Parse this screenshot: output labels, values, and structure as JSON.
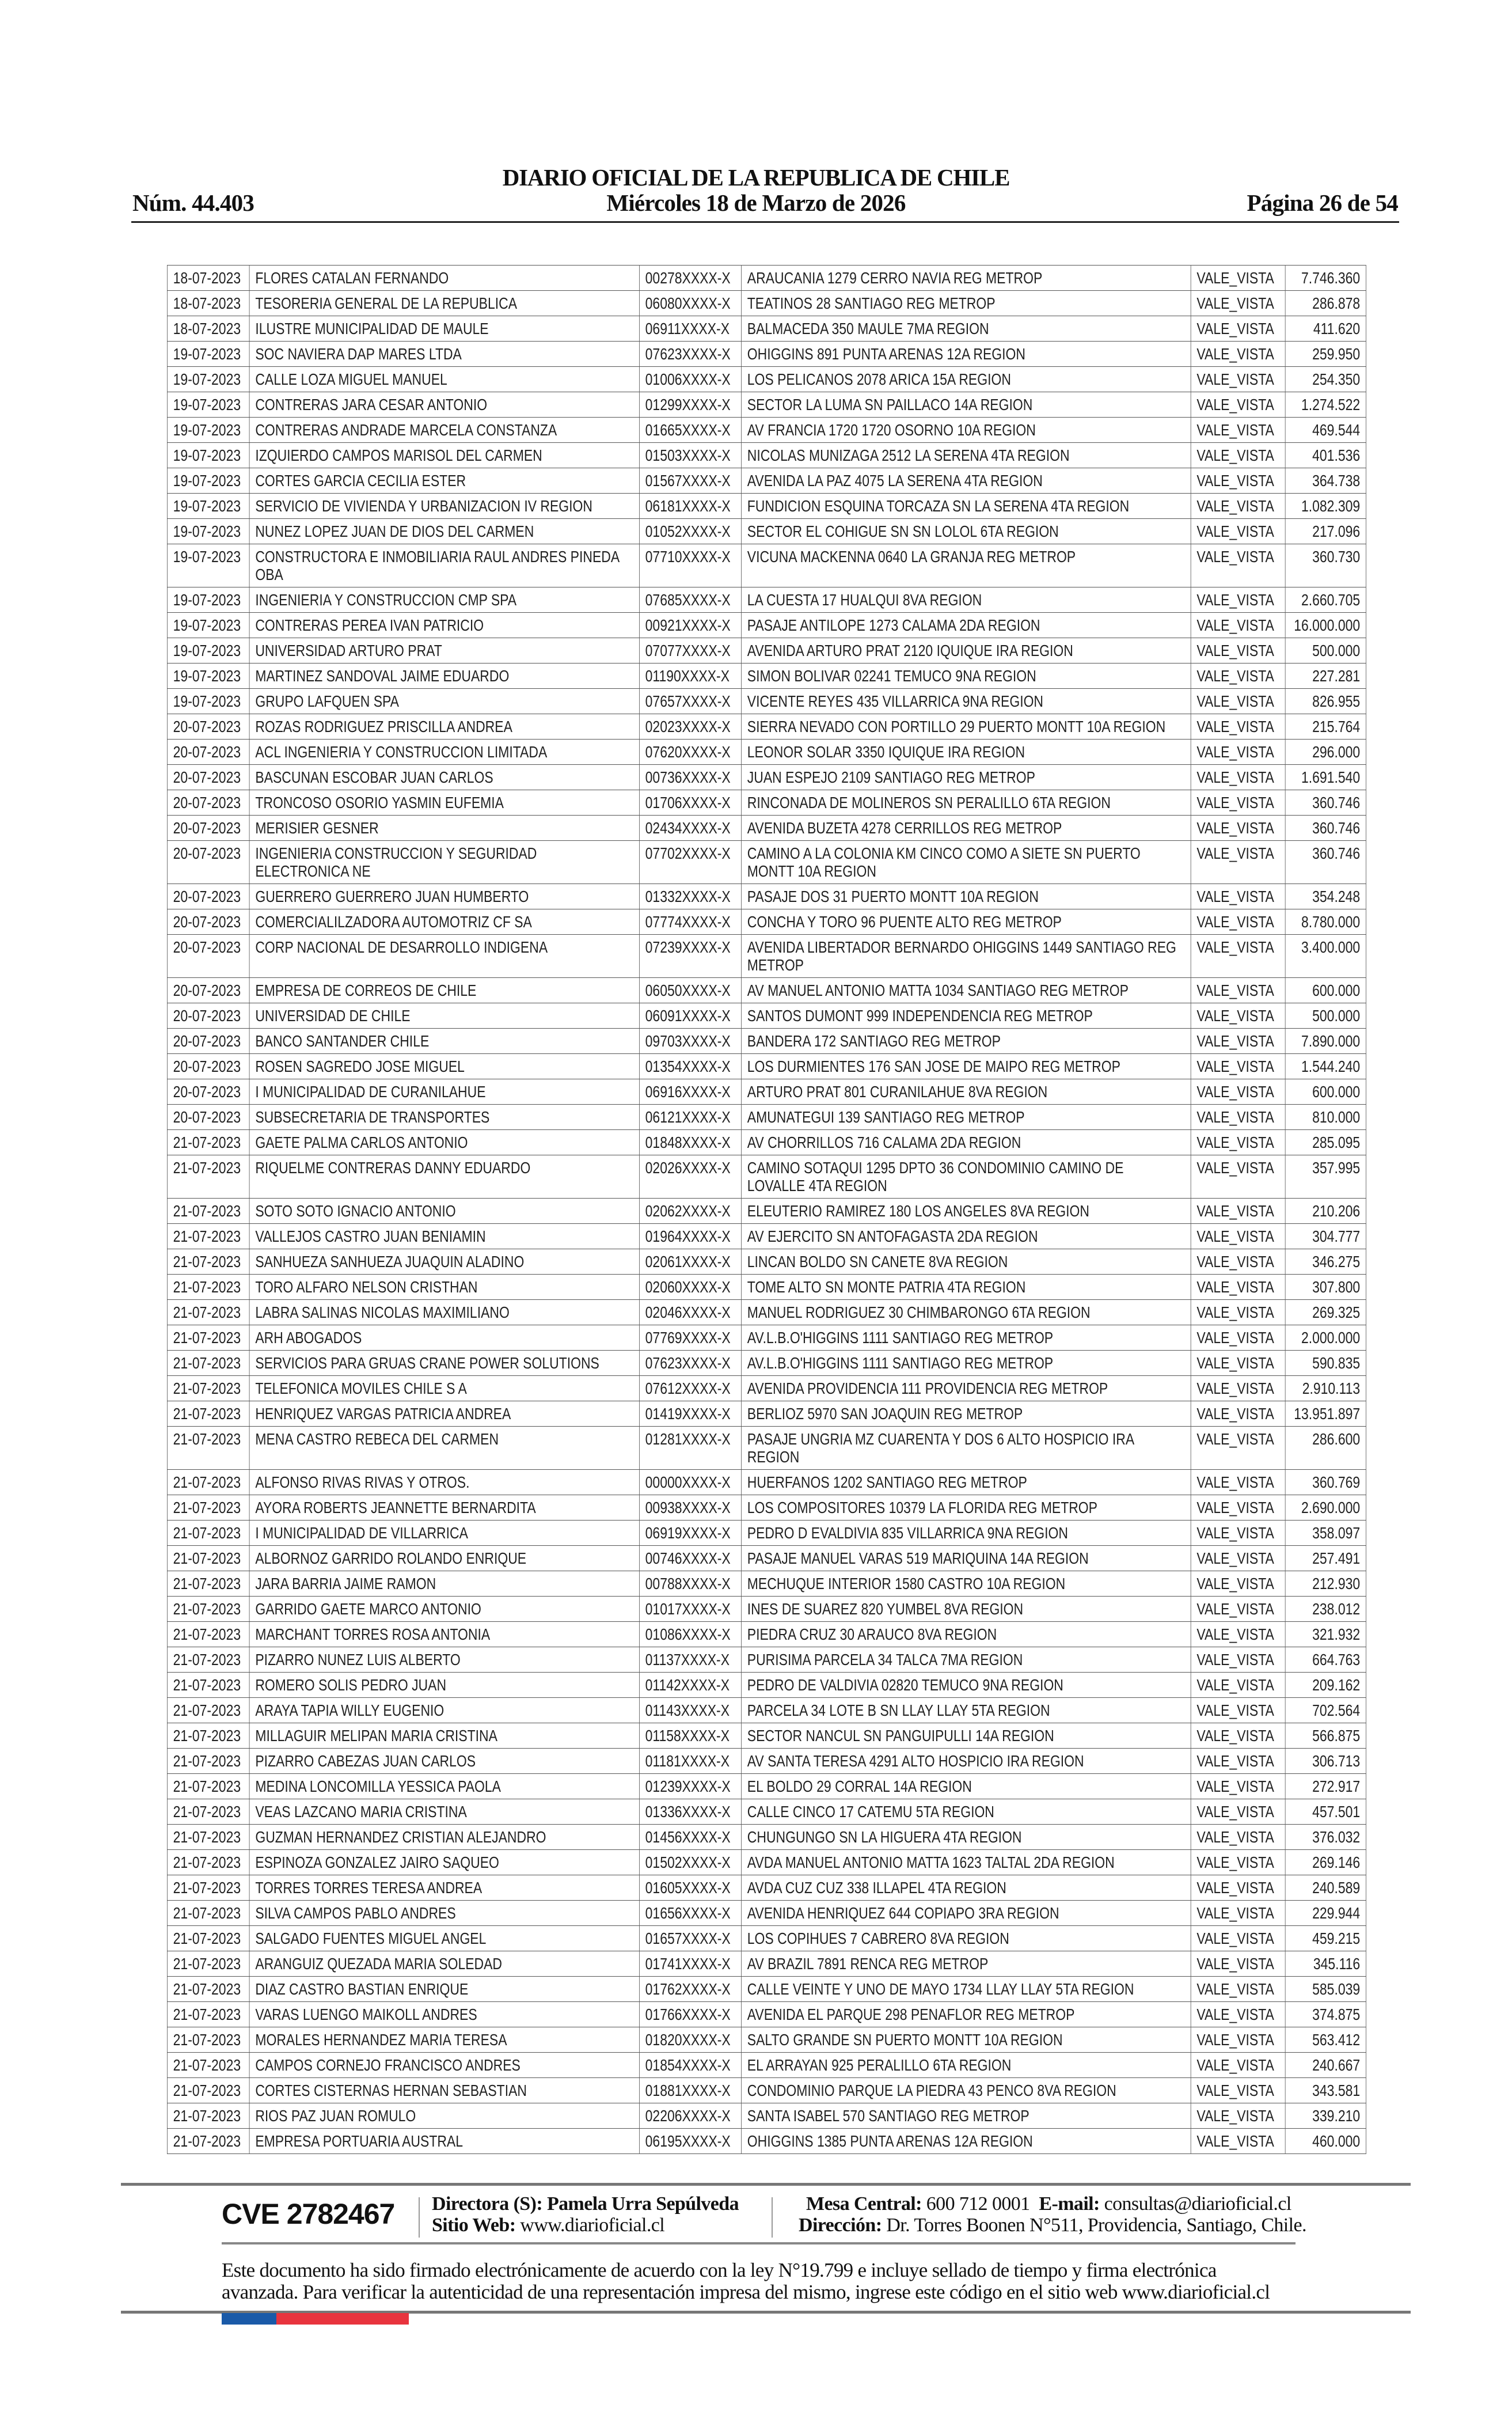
{
  "header": {
    "title": "DIARIO OFICIAL DE LA REPUBLICA DE CHILE",
    "number": "Núm. 44.403",
    "date": "Miércoles 18 de Marzo de 2026",
    "page": "Página 26 de 54"
  },
  "table": {
    "rows": [
      [
        "18-07-2023",
        "FLORES CATALAN FERNANDO",
        "00278XXXX-X",
        "ARAUCANIA 1279 CERRO NAVIA REG METROP",
        "VALE_VISTA",
        "7.746.360"
      ],
      [
        "18-07-2023",
        "TESORERIA GENERAL DE LA REPUBLICA",
        "06080XXXX-X",
        "TEATINOS 28 SANTIAGO REG METROP",
        "VALE_VISTA",
        "286.878"
      ],
      [
        "18-07-2023",
        "ILUSTRE MUNICIPALIDAD DE MAULE",
        "06911XXXX-X",
        "BALMACEDA 350 MAULE 7MA REGION",
        "VALE_VISTA",
        "411.620"
      ],
      [
        "19-07-2023",
        "SOC NAVIERA DAP MARES LTDA",
        "07623XXXX-X",
        "OHIGGINS 891 PUNTA ARENAS 12A REGION",
        "VALE_VISTA",
        "259.950"
      ],
      [
        "19-07-2023",
        "CALLE LOZA MIGUEL MANUEL",
        "01006XXXX-X",
        "LOS PELICANOS 2078 ARICA 15A REGION",
        "VALE_VISTA",
        "254.350"
      ],
      [
        "19-07-2023",
        "CONTRERAS JARA CESAR ANTONIO",
        "01299XXXX-X",
        "SECTOR LA LUMA SN PAILLACO 14A REGION",
        "VALE_VISTA",
        "1.274.522"
      ],
      [
        "19-07-2023",
        "CONTRERAS ANDRADE MARCELA CONSTANZA",
        "01665XXXX-X",
        "AV FRANCIA 1720 1720 OSORNO 10A REGION",
        "VALE_VISTA",
        "469.544"
      ],
      [
        "19-07-2023",
        "IZQUIERDO CAMPOS MARISOL DEL CARMEN",
        "01503XXXX-X",
        "NICOLAS MUNIZAGA 2512 LA SERENA 4TA REGION",
        "VALE_VISTA",
        "401.536"
      ],
      [
        "19-07-2023",
        "CORTES GARCIA CECILIA ESTER",
        "01567XXXX-X",
        "AVENIDA LA PAZ 4075 LA SERENA 4TA REGION",
        "VALE_VISTA",
        "364.738"
      ],
      [
        "19-07-2023",
        "SERVICIO DE VIVIENDA Y URBANIZACION IV REGION",
        "06181XXXX-X",
        "FUNDICION ESQUINA TORCAZA SN LA SERENA 4TA REGION",
        "VALE_VISTA",
        "1.082.309"
      ],
      [
        "19-07-2023",
        "NUNEZ LOPEZ JUAN DE DIOS DEL CARMEN",
        "01052XXXX-X",
        "SECTOR EL COHIGUE SN SN LOLOL 6TA REGION",
        "VALE_VISTA",
        "217.096"
      ],
      [
        "19-07-2023",
        "CONSTRUCTORA E INMOBILIARIA RAUL ANDRES PINEDA OBA",
        "07710XXXX-X",
        "VICUNA MACKENNA 0640 LA GRANJA REG METROP",
        "VALE_VISTA",
        "360.730"
      ],
      [
        "19-07-2023",
        "INGENIERIA Y CONSTRUCCION CMP SPA",
        "07685XXXX-X",
        "LA CUESTA 17 HUALQUI 8VA REGION",
        "VALE_VISTA",
        "2.660.705"
      ],
      [
        "19-07-2023",
        "CONTRERAS PEREA IVAN PATRICIO",
        "00921XXXX-X",
        "PASAJE ANTILOPE 1273 CALAMA 2DA REGION",
        "VALE_VISTA",
        "16.000.000"
      ],
      [
        "19-07-2023",
        "UNIVERSIDAD ARTURO PRAT",
        "07077XXXX-X",
        "AVENIDA ARTURO PRAT 2120 IQUIQUE IRA REGION",
        "VALE_VISTA",
        "500.000"
      ],
      [
        "19-07-2023",
        "MARTINEZ SANDOVAL JAIME EDUARDO",
        "01190XXXX-X",
        "SIMON BOLIVAR 02241 TEMUCO 9NA REGION",
        "VALE_VISTA",
        "227.281"
      ],
      [
        "19-07-2023",
        "GRUPO LAFQUEN SPA",
        "07657XXXX-X",
        "VICENTE REYES 435 VILLARRICA 9NA REGION",
        "VALE_VISTA",
        "826.955"
      ],
      [
        "20-07-2023",
        "ROZAS RODRIGUEZ PRISCILLA ANDREA",
        "02023XXXX-X",
        "SIERRA NEVADO CON PORTILLO 29 PUERTO MONTT 10A REGION",
        "VALE_VISTA",
        "215.764"
      ],
      [
        "20-07-2023",
        "ACL INGENIERIA Y CONSTRUCCION LIMITADA",
        "07620XXXX-X",
        "LEONOR SOLAR 3350 IQUIQUE IRA REGION",
        "VALE_VISTA",
        "296.000"
      ],
      [
        "20-07-2023",
        "BASCUNAN ESCOBAR JUAN CARLOS",
        "00736XXXX-X",
        "JUAN ESPEJO 2109 SANTIAGO REG METROP",
        "VALE_VISTA",
        "1.691.540"
      ],
      [
        "20-07-2023",
        "TRONCOSO OSORIO YASMIN EUFEMIA",
        "01706XXXX-X",
        "RINCONADA DE MOLINEROS SN PERALILLO 6TA REGION",
        "VALE_VISTA",
        "360.746"
      ],
      [
        "20-07-2023",
        "MERISIER  GESNER",
        "02434XXXX-X",
        "AVENIDA BUZETA 4278 CERRILLOS REG METROP",
        "VALE_VISTA",
        "360.746"
      ],
      [
        "20-07-2023",
        "INGENIERIA CONSTRUCCION Y SEGURIDAD ELECTRONICA NE",
        "07702XXXX-X",
        "CAMINO A LA COLONIA KM CINCO COMO A SIETE SN PUERTO MONTT 10A REGION",
        "VALE_VISTA",
        "360.746"
      ],
      [
        "20-07-2023",
        "GUERRERO GUERRERO JUAN HUMBERTO",
        "01332XXXX-X",
        "PASAJE DOS 31 PUERTO MONTT 10A REGION",
        "VALE_VISTA",
        "354.248"
      ],
      [
        "20-07-2023",
        "COMERCIALILZADORA AUTOMOTRIZ CF SA",
        "07774XXXX-X",
        "CONCHA Y TORO 96 PUENTE ALTO REG METROP",
        "VALE_VISTA",
        "8.780.000"
      ],
      [
        "20-07-2023",
        "CORP NACIONAL DE DESARROLLO INDIGENA",
        "07239XXXX-X",
        "AVENIDA LIBERTADOR BERNARDO OHIGGINS 1449 SANTIAGO REG METROP",
        "VALE_VISTA",
        "3.400.000"
      ],
      [
        "20-07-2023",
        "EMPRESA DE CORREOS DE CHILE",
        "06050XXXX-X",
        "AV MANUEL ANTONIO MATTA 1034 SANTIAGO REG METROP",
        "VALE_VISTA",
        "600.000"
      ],
      [
        "20-07-2023",
        "UNIVERSIDAD DE CHILE",
        "06091XXXX-X",
        "SANTOS DUMONT 999 INDEPENDENCIA REG METROP",
        "VALE_VISTA",
        "500.000"
      ],
      [
        "20-07-2023",
        "BANCO SANTANDER CHILE",
        "09703XXXX-X",
        "BANDERA 172 SANTIAGO REG METROP",
        "VALE_VISTA",
        "7.890.000"
      ],
      [
        "20-07-2023",
        "ROSEN SAGREDO JOSE MIGUEL",
        "01354XXXX-X",
        "LOS DURMIENTES 176 SAN JOSE DE MAIPO REG METROP",
        "VALE_VISTA",
        "1.544.240"
      ],
      [
        "20-07-2023",
        "I MUNICIPALIDAD DE CURANILAHUE",
        "06916XXXX-X",
        "ARTURO PRAT 801 CURANILAHUE 8VA REGION",
        "VALE_VISTA",
        "600.000"
      ],
      [
        "20-07-2023",
        "SUBSECRETARIA DE TRANSPORTES",
        "06121XXXX-X",
        "AMUNATEGUI 139 SANTIAGO REG METROP",
        "VALE_VISTA",
        "810.000"
      ],
      [
        "21-07-2023",
        "GAETE PALMA CARLOS ANTONIO",
        "01848XXXX-X",
        "AV CHORRILLOS 716 CALAMA 2DA REGION",
        "VALE_VISTA",
        "285.095"
      ],
      [
        "21-07-2023",
        "RIQUELME CONTRERAS DANNY EDUARDO",
        "02026XXXX-X",
        "CAMINO SOTAQUI 1295 DPTO 36 CONDOMINIO CAMINO DE LOVALLE 4TA REGION",
        "VALE_VISTA",
        "357.995"
      ],
      [
        "21-07-2023",
        "SOTO SOTO IGNACIO ANTONIO",
        "02062XXXX-X",
        "ELEUTERIO RAMIREZ 180 LOS ANGELES 8VA REGION",
        "VALE_VISTA",
        "210.206"
      ],
      [
        "21-07-2023",
        "VALLEJOS CASTRO JUAN BENIAMIN",
        "01964XXXX-X",
        "AV EJERCITO SN ANTOFAGASTA 2DA REGION",
        "VALE_VISTA",
        "304.777"
      ],
      [
        "21-07-2023",
        "SANHUEZA SANHUEZA JUAQUIN ALADINO",
        "02061XXXX-X",
        "LINCAN BOLDO SN CANETE 8VA REGION",
        "VALE_VISTA",
        "346.275"
      ],
      [
        "21-07-2023",
        "TORO ALFARO NELSON CRISTHAN",
        "02060XXXX-X",
        "TOME ALTO SN MONTE PATRIA 4TA REGION",
        "VALE_VISTA",
        "307.800"
      ],
      [
        "21-07-2023",
        "LABRA SALINAS NICOLAS MAXIMILIANO",
        "02046XXXX-X",
        "MANUEL RODRIGUEZ 30 CHIMBARONGO 6TA REGION",
        "VALE_VISTA",
        "269.325"
      ],
      [
        "21-07-2023",
        "ARH ABOGADOS",
        "07769XXXX-X",
        "AV.L.B.O'HIGGINS 1111 SANTIAGO REG METROP",
        "VALE_VISTA",
        "2.000.000"
      ],
      [
        "21-07-2023",
        "SERVICIOS PARA GRUAS CRANE POWER SOLUTIONS",
        "07623XXXX-X",
        "AV.L.B.O'HIGGINS 1111 SANTIAGO REG METROP",
        "VALE_VISTA",
        "590.835"
      ],
      [
        "21-07-2023",
        "TELEFONICA MOVILES CHILE S A",
        "07612XXXX-X",
        "AVENIDA PROVIDENCIA 111 PROVIDENCIA REG METROP",
        "VALE_VISTA",
        "2.910.113"
      ],
      [
        "21-07-2023",
        "HENRIQUEZ VARGAS PATRICIA ANDREA",
        "01419XXXX-X",
        "BERLIOZ 5970 SAN JOAQUIN REG METROP",
        "VALE_VISTA",
        "13.951.897"
      ],
      [
        "21-07-2023",
        "MENA CASTRO REBECA DEL CARMEN",
        "01281XXXX-X",
        "PASAJE UNGRIA MZ CUARENTA Y DOS 6 ALTO HOSPICIO IRA REGION",
        "VALE_VISTA",
        "286.600"
      ],
      [
        "21-07-2023",
        " ALFONSO RIVAS RIVAS Y OTROS.",
        "00000XXXX-X",
        "HUERFANOS 1202 SANTIAGO REG METROP",
        "VALE_VISTA",
        "360.769"
      ],
      [
        "21-07-2023",
        "AYORA ROBERTS JEANNETTE BERNARDITA",
        "00938XXXX-X",
        "LOS COMPOSITORES 10379 LA FLORIDA REG METROP",
        "VALE_VISTA",
        "2.690.000"
      ],
      [
        "21-07-2023",
        "I MUNICIPALIDAD DE VILLARRICA",
        "06919XXXX-X",
        "PEDRO D EVALDIVIA 835 VILLARRICA 9NA REGION",
        "VALE_VISTA",
        "358.097"
      ],
      [
        "21-07-2023",
        "ALBORNOZ GARRIDO ROLANDO ENRIQUE",
        "00746XXXX-X",
        "PASAJE MANUEL VARAS 519 MARIQUINA 14A REGION",
        "VALE_VISTA",
        "257.491"
      ],
      [
        "21-07-2023",
        "JARA BARRIA JAIME RAMON",
        "00788XXXX-X",
        "MECHUQUE INTERIOR 1580 CASTRO 10A REGION",
        "VALE_VISTA",
        "212.930"
      ],
      [
        "21-07-2023",
        "GARRIDO GAETE MARCO ANTONIO",
        "01017XXXX-X",
        "INES DE SUAREZ 820 YUMBEL 8VA REGION",
        "VALE_VISTA",
        "238.012"
      ],
      [
        "21-07-2023",
        "MARCHANT TORRES ROSA ANTONIA",
        "01086XXXX-X",
        "PIEDRA CRUZ 30 ARAUCO 8VA REGION",
        "VALE_VISTA",
        "321.932"
      ],
      [
        "21-07-2023",
        "PIZARRO NUNEZ LUIS ALBERTO",
        "01137XXXX-X",
        "PURISIMA PARCELA 34 TALCA 7MA REGION",
        "VALE_VISTA",
        "664.763"
      ],
      [
        "21-07-2023",
        "ROMERO SOLIS PEDRO JUAN",
        "01142XXXX-X",
        "PEDRO DE VALDIVIA 02820 TEMUCO 9NA REGION",
        "VALE_VISTA",
        "209.162"
      ],
      [
        "21-07-2023",
        "ARAYA TAPIA WILLY EUGENIO",
        "01143XXXX-X",
        "PARCELA 34 LOTE B SN LLAY LLAY 5TA REGION",
        "VALE_VISTA",
        "702.564"
      ],
      [
        "21-07-2023",
        "MILLAGUIR MELIPAN MARIA CRISTINA",
        "01158XXXX-X",
        "SECTOR NANCUL SN PANGUIPULLI 14A REGION",
        "VALE_VISTA",
        "566.875"
      ],
      [
        "21-07-2023",
        "PIZARRO CABEZAS JUAN CARLOS",
        "01181XXXX-X",
        "AV SANTA TERESA 4291 ALTO HOSPICIO IRA REGION",
        "VALE_VISTA",
        "306.713"
      ],
      [
        "21-07-2023",
        "MEDINA LONCOMILLA YESSICA PAOLA",
        "01239XXXX-X",
        "EL BOLDO 29 CORRAL 14A REGION",
        "VALE_VISTA",
        "272.917"
      ],
      [
        "21-07-2023",
        "VEAS LAZCANO MARIA CRISTINA",
        "01336XXXX-X",
        "CALLE CINCO 17 CATEMU 5TA REGION",
        "VALE_VISTA",
        "457.501"
      ],
      [
        "21-07-2023",
        "GUZMAN HERNANDEZ CRISTIAN ALEJANDRO",
        "01456XXXX-X",
        "CHUNGUNGO SN LA HIGUERA 4TA REGION",
        "VALE_VISTA",
        "376.032"
      ],
      [
        "21-07-2023",
        "ESPINOZA GONZALEZ JAIRO SAQUEO",
        "01502XXXX-X",
        "AVDA MANUEL ANTONIO MATTA 1623 TALTAL 2DA REGION",
        "VALE_VISTA",
        "269.146"
      ],
      [
        "21-07-2023",
        "TORRES TORRES TERESA ANDREA",
        "01605XXXX-X",
        "AVDA CUZ CUZ 338 ILLAPEL 4TA REGION",
        "VALE_VISTA",
        "240.589"
      ],
      [
        "21-07-2023",
        "SILVA CAMPOS PABLO ANDRES",
        "01656XXXX-X",
        "AVENIDA HENRIQUEZ 644 COPIAPO 3RA REGION",
        "VALE_VISTA",
        "229.944"
      ],
      [
        "21-07-2023",
        "SALGADO FUENTES MIGUEL ANGEL",
        "01657XXXX-X",
        "LOS COPIHUES 7 CABRERO 8VA REGION",
        "VALE_VISTA",
        "459.215"
      ],
      [
        "21-07-2023",
        "ARANGUIZ QUEZADA MARIA SOLEDAD",
        "01741XXXX-X",
        "AV BRAZIL 7891 RENCA REG METROP",
        "VALE_VISTA",
        "345.116"
      ],
      [
        "21-07-2023",
        "DIAZ CASTRO BASTIAN ENRIQUE",
        "01762XXXX-X",
        "CALLE VEINTE Y UNO DE MAYO 1734 LLAY LLAY 5TA REGION",
        "VALE_VISTA",
        "585.039"
      ],
      [
        "21-07-2023",
        "VARAS LUENGO MAIKOLL ANDRES",
        "01766XXXX-X",
        "AVENIDA EL PARQUE 298 PENAFLOR REG METROP",
        "VALE_VISTA",
        "374.875"
      ],
      [
        "21-07-2023",
        "MORALES HERNANDEZ MARIA TERESA",
        "01820XXXX-X",
        "SALTO GRANDE SN PUERTO MONTT 10A REGION",
        "VALE_VISTA",
        "563.412"
      ],
      [
        "21-07-2023",
        "CAMPOS CORNEJO FRANCISCO ANDRES",
        "01854XXXX-X",
        "EL ARRAYAN 925 PERALILLO 6TA REGION",
        "VALE_VISTA",
        "240.667"
      ],
      [
        "21-07-2023",
        "CORTES CISTERNAS HERNAN SEBASTIAN",
        "01881XXXX-X",
        "CONDOMINIO PARQUE LA PIEDRA 43 PENCO 8VA REGION",
        "VALE_VISTA",
        "343.581"
      ],
      [
        "21-07-2023",
        "RIOS PAZ JUAN ROMULO",
        "02206XXXX-X",
        "SANTA ISABEL 570 SANTIAGO REG METROP",
        "VALE_VISTA",
        "339.210"
      ],
      [
        "21-07-2023",
        "EMPRESA PORTUARIA AUSTRAL",
        "06195XXXX-X",
        "OHIGGINS 1385 PUNTA ARENAS 12A REGION",
        "VALE_VISTA",
        "460.000"
      ]
    ]
  },
  "footer": {
    "cve": "CVE 2782467",
    "director_label": "Directora (S):",
    "director_name": "Pamela Urra Sepúlveda",
    "web_label": "Sitio Web:",
    "web_value": "www.diarioficial.cl",
    "phone_label": "Mesa Central:",
    "phone_value": "600 712 0001",
    "email_label": "E-mail:",
    "email_value": "consultas@diarioficial.cl",
    "address_label": "Dirección:",
    "address_value": "Dr. Torres Boonen N°511, Providencia, Santiago, Chile.",
    "disclaimer_line1": "Este documento ha sido firmado electrónicamente de acuerdo con la ley N°19.799 e incluye sellado de tiempo y firma electrónica",
    "disclaimer_line2": "avanzada. Para verificar la autenticidad de una representación impresa del mismo, ingrese este código en el sitio web www.diarioficial.cl"
  },
  "colors": {
    "flag_blue": "#1a5aa8",
    "flag_red": "#e8343e"
  }
}
